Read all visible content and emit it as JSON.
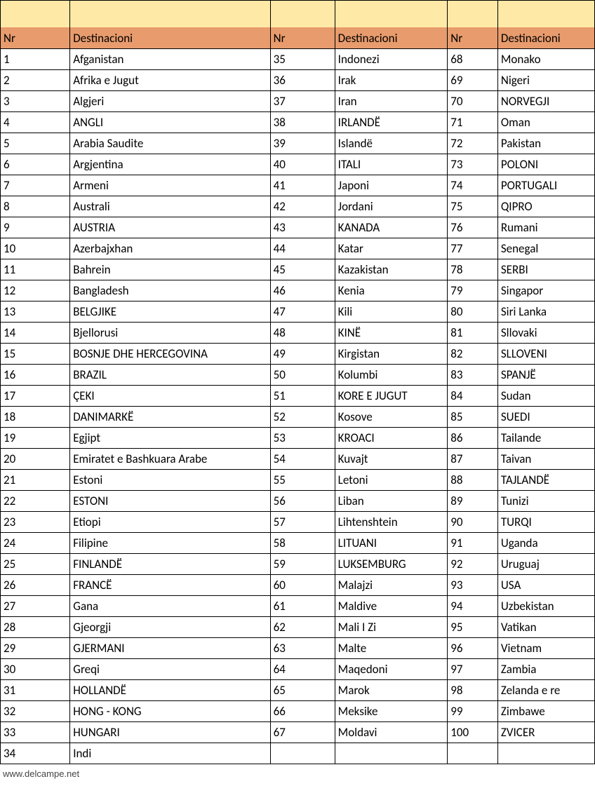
{
  "colors": {
    "spacer_bg": "#ffe9a6",
    "header_bg": "#e89b6c",
    "border": "#000000",
    "text": "#000000",
    "bg": "#ffffff"
  },
  "headers": {
    "nr": "Nr",
    "dest": "Destinacioni"
  },
  "footer": "www.delcampe.net",
  "col1": [
    {
      "nr": "1",
      "dest": "Afganistan"
    },
    {
      "nr": "2",
      "dest": "Afrika e Jugut"
    },
    {
      "nr": "3",
      "dest": "Algjeri"
    },
    {
      "nr": "4",
      "dest": "ANGLI"
    },
    {
      "nr": "5",
      "dest": "Arabia Saudite"
    },
    {
      "nr": "6",
      "dest": "Argjentina"
    },
    {
      "nr": "7",
      "dest": "Armeni"
    },
    {
      "nr": "8",
      "dest": "Australi"
    },
    {
      "nr": "9",
      "dest": "AUSTRIA"
    },
    {
      "nr": "10",
      "dest": "Azerbajxhan"
    },
    {
      "nr": "11",
      "dest": "Bahrein"
    },
    {
      "nr": "12",
      "dest": "Bangladesh"
    },
    {
      "nr": "13",
      "dest": "BELGJIKE"
    },
    {
      "nr": "14",
      "dest": "Bjellorusi"
    },
    {
      "nr": "15",
      "dest": "BOSNJE DHE HERCEGOVINA"
    },
    {
      "nr": "16",
      "dest": "BRAZIL"
    },
    {
      "nr": "17",
      "dest": "ÇEKI"
    },
    {
      "nr": "18",
      "dest": "DANIMARKË"
    },
    {
      "nr": "19",
      "dest": "Egjipt"
    },
    {
      "nr": "20",
      "dest": "Emiratet e Bashkuara Arabe"
    },
    {
      "nr": "21",
      "dest": "Estoni"
    },
    {
      "nr": "22",
      "dest": "ESTONI"
    },
    {
      "nr": "23",
      "dest": "Etiopi"
    },
    {
      "nr": "24",
      "dest": "Filipine"
    },
    {
      "nr": "25",
      "dest": "FINLANDË"
    },
    {
      "nr": "26",
      "dest": "FRANCË"
    },
    {
      "nr": "27",
      "dest": "Gana"
    },
    {
      "nr": "28",
      "dest": "Gjeorgji"
    },
    {
      "nr": "29",
      "dest": "GJERMANI"
    },
    {
      "nr": "30",
      "dest": "Greqi"
    },
    {
      "nr": "31",
      "dest": "HOLLANDË"
    },
    {
      "nr": "32",
      "dest": "HONG - KONG"
    },
    {
      "nr": "33",
      "dest": "HUNGARI"
    },
    {
      "nr": "34",
      "dest": "Indi"
    }
  ],
  "col2": [
    {
      "nr": "35",
      "dest": "Indonezi"
    },
    {
      "nr": "36",
      "dest": "Irak"
    },
    {
      "nr": "37",
      "dest": "Iran"
    },
    {
      "nr": "38",
      "dest": "IRLANDË"
    },
    {
      "nr": "39",
      "dest": "Islandë"
    },
    {
      "nr": "40",
      "dest": "ITALI"
    },
    {
      "nr": "41",
      "dest": "Japoni"
    },
    {
      "nr": "42",
      "dest": "Jordani"
    },
    {
      "nr": "43",
      "dest": "KANADA"
    },
    {
      "nr": "44",
      "dest": "Katar"
    },
    {
      "nr": "45",
      "dest": "Kazakistan"
    },
    {
      "nr": "46",
      "dest": "Kenia"
    },
    {
      "nr": "47",
      "dest": "Kili"
    },
    {
      "nr": "48",
      "dest": "KINË"
    },
    {
      "nr": "49",
      "dest": "Kirgistan"
    },
    {
      "nr": "50",
      "dest": "Kolumbi"
    },
    {
      "nr": "51",
      "dest": "KORE E JUGUT"
    },
    {
      "nr": "52",
      "dest": "Kosove"
    },
    {
      "nr": "53",
      "dest": "KROACI"
    },
    {
      "nr": "54",
      "dest": "Kuvajt"
    },
    {
      "nr": "55",
      "dest": "Letoni"
    },
    {
      "nr": "56",
      "dest": "Liban"
    },
    {
      "nr": "57",
      "dest": "Lihtenshtein"
    },
    {
      "nr": "58",
      "dest": "LITUANI"
    },
    {
      "nr": "59",
      "dest": "LUKSEMBURG"
    },
    {
      "nr": "60",
      "dest": "Malajzi"
    },
    {
      "nr": "61",
      "dest": "Maldive"
    },
    {
      "nr": "62",
      "dest": "Mali I Zi"
    },
    {
      "nr": "63",
      "dest": "Malte"
    },
    {
      "nr": "64",
      "dest": "Maqedoni"
    },
    {
      "nr": "65",
      "dest": "Marok"
    },
    {
      "nr": "66",
      "dest": "Meksike"
    },
    {
      "nr": "67",
      "dest": "Moldavi"
    },
    {
      "nr": "",
      "dest": ""
    }
  ],
  "col3": [
    {
      "nr": "68",
      "dest": "Monako"
    },
    {
      "nr": "69",
      "dest": "Nigeri"
    },
    {
      "nr": "70",
      "dest": "NORVEGJI"
    },
    {
      "nr": "71",
      "dest": "Oman"
    },
    {
      "nr": "72",
      "dest": "Pakistan"
    },
    {
      "nr": "73",
      "dest": "POLONI"
    },
    {
      "nr": "74",
      "dest": "PORTUGALI"
    },
    {
      "nr": "75",
      "dest": "QIPRO"
    },
    {
      "nr": "76",
      "dest": "Rumani"
    },
    {
      "nr": "77",
      "dest": "Senegal"
    },
    {
      "nr": "78",
      "dest": "SERBI"
    },
    {
      "nr": "79",
      "dest": "Singapor"
    },
    {
      "nr": "80",
      "dest": "Siri Lanka"
    },
    {
      "nr": "81",
      "dest": "Sllovaki"
    },
    {
      "nr": "82",
      "dest": "SLLOVENI"
    },
    {
      "nr": "83",
      "dest": "SPANJË"
    },
    {
      "nr": "84",
      "dest": "Sudan"
    },
    {
      "nr": "85",
      "dest": "SUEDI"
    },
    {
      "nr": "86",
      "dest": "Tailande"
    },
    {
      "nr": "87",
      "dest": "Taivan"
    },
    {
      "nr": "88",
      "dest": "TAJLANDË"
    },
    {
      "nr": "89",
      "dest": "Tunizi"
    },
    {
      "nr": "90",
      "dest": "TURQI"
    },
    {
      "nr": "91",
      "dest": "Uganda"
    },
    {
      "nr": "92",
      "dest": "Uruguaj"
    },
    {
      "nr": "93",
      "dest": "USA"
    },
    {
      "nr": "94",
      "dest": "Uzbekistan"
    },
    {
      "nr": "95",
      "dest": "Vatikan"
    },
    {
      "nr": "96",
      "dest": "Vietnam"
    },
    {
      "nr": "97",
      "dest": "Zambia"
    },
    {
      "nr": "98",
      "dest": "Zelanda e re"
    },
    {
      "nr": "99",
      "dest": "Zimbawe"
    },
    {
      "nr": "100",
      "dest": "ZVICER"
    },
    {
      "nr": "",
      "dest": ""
    }
  ]
}
